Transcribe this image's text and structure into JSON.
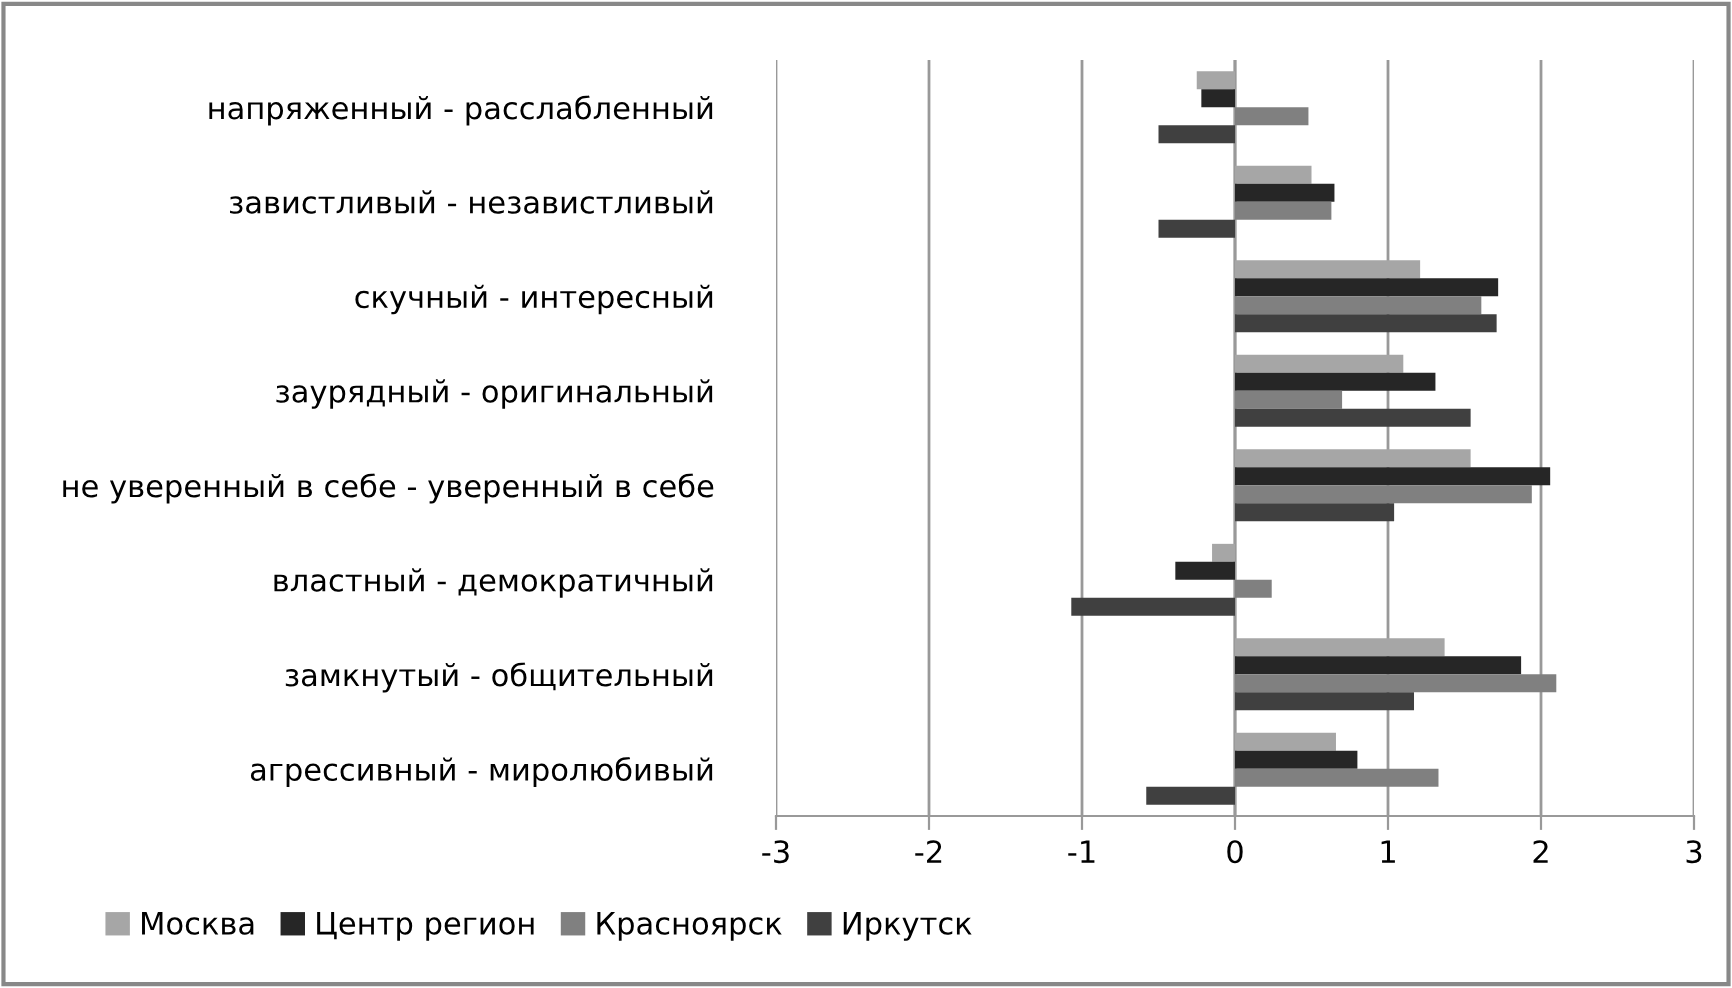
{
  "chart_data": {
    "type": "bar",
    "orientation": "horizontal",
    "categories": [
      "напряженный - расслабленный",
      "завистливый - независтливый",
      "скучный - интересный",
      "заурядный - оригинальный",
      "не уверенный в себе - уверенный в себе",
      "властный - демократичный",
      "замкнутый - общительный",
      "агрессивный - миролюбивый"
    ],
    "series": [
      {
        "name": "Москва",
        "color": "#a6a6a6",
        "values": [
          -0.25,
          0.5,
          1.21,
          1.1,
          1.54,
          -0.15,
          1.37,
          0.66
        ]
      },
      {
        "name": "Центр регион",
        "color": "#262626",
        "values": [
          -0.22,
          0.65,
          1.72,
          1.31,
          2.06,
          -0.39,
          1.87,
          0.8
        ]
      },
      {
        "name": "Красноярск",
        "color": "#808080",
        "values": [
          0.48,
          0.63,
          1.61,
          0.7,
          1.94,
          0.24,
          2.1,
          1.33
        ]
      },
      {
        "name": "Иркутск",
        "color": "#404040",
        "values": [
          -0.5,
          -0.5,
          1.71,
          1.54,
          1.04,
          -1.07,
          1.17,
          -0.58
        ]
      }
    ],
    "xlim": [
      -3,
      3
    ],
    "xticks": [
      -3,
      -2,
      -1,
      0,
      1,
      2,
      3
    ],
    "grid": "x",
    "legend": "bottom left"
  }
}
